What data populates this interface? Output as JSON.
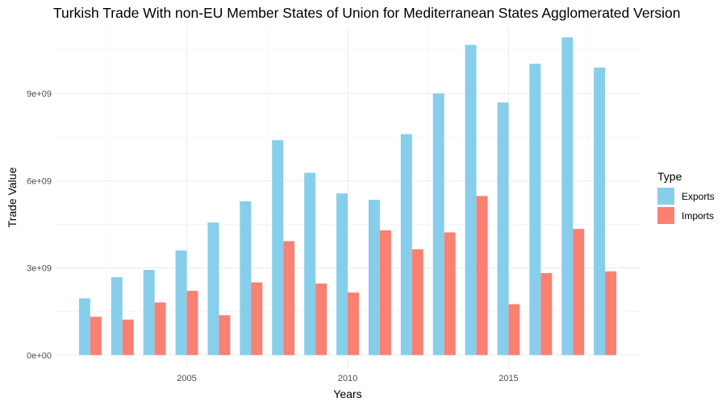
{
  "chart_data": {
    "type": "bar",
    "title": "Turkish Trade With non-EU Member States of Union for Mediterranean States Agglomerated Version",
    "xlabel": "Years",
    "ylabel": "Trade Value",
    "x": [
      2002,
      2003,
      2004,
      2005,
      2006,
      2007,
      2008,
      2009,
      2010,
      2011,
      2012,
      2013,
      2014,
      2015,
      2016,
      2017,
      2018
    ],
    "xlim": [
      2000.9,
      2019.1
    ],
    "xticks": [
      2005,
      2010,
      2015
    ],
    "xtick_labels": [
      "2005",
      "2010",
      "2015"
    ],
    "ylim": [
      -450000000,
      11300000000
    ],
    "yticks": [
      0,
      3000000000,
      6000000000,
      9000000000
    ],
    "ytick_labels": [
      "0e+00",
      "3e+09",
      "6e+09",
      "9e+09"
    ],
    "series": [
      {
        "name": "Exports",
        "color": "#87CEEB",
        "values": [
          1950000000,
          2680000000,
          2930000000,
          3600000000,
          4560000000,
          5290000000,
          7390000000,
          6270000000,
          5560000000,
          5340000000,
          7600000000,
          9000000000,
          10670000000,
          8690000000,
          10020000000,
          10930000000,
          9890000000
        ]
      },
      {
        "name": "Imports",
        "color": "#FA8072",
        "values": [
          1320000000,
          1220000000,
          1810000000,
          2210000000,
          1370000000,
          2500000000,
          3920000000,
          2460000000,
          2150000000,
          4290000000,
          3640000000,
          4220000000,
          5470000000,
          1750000000,
          2820000000,
          4340000000,
          2880000000
        ]
      }
    ],
    "legend": {
      "title": "Type",
      "position": "right"
    },
    "grid": true
  }
}
